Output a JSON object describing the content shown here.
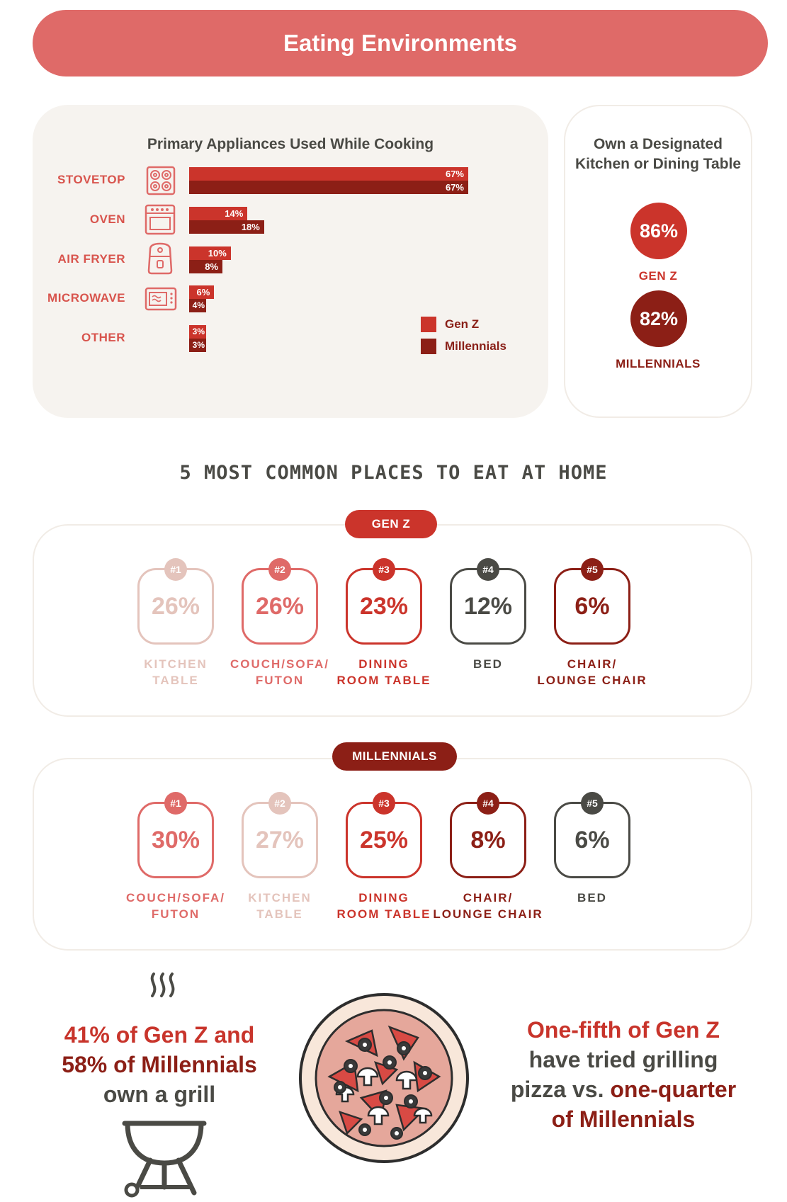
{
  "banner": {
    "title": "Eating Environments"
  },
  "appliances": {
    "title": "Primary Appliances Used While Cooking",
    "legend": {
      "genz": "Gen Z",
      "millennials": "Millennials"
    }
  },
  "colors": {
    "genz": "#cb342b",
    "millennials": "#8c1f16",
    "accent": "#df6a68",
    "dark": "#4a4a45"
  },
  "chart_data": {
    "type": "bar",
    "orientation": "horizontal",
    "title": "Primary Appliances Used While Cooking",
    "categories": [
      "STOVETOP",
      "OVEN",
      "AIR FRYER",
      "MICROWAVE",
      "OTHER"
    ],
    "icons": [
      "stovetop-icon",
      "oven-icon",
      "air-fryer-icon",
      "microwave-icon",
      ""
    ],
    "series": [
      {
        "name": "Gen Z",
        "values": [
          67,
          14,
          10,
          6,
          3
        ],
        "labels": [
          "67%",
          "14%",
          "10%",
          "6%",
          "3%"
        ]
      },
      {
        "name": "Millennials",
        "values": [
          67,
          18,
          8,
          4,
          3
        ],
        "labels": [
          "67%",
          "18%",
          "8%",
          "4%",
          "3%"
        ]
      }
    ],
    "xlim": [
      0,
      70
    ],
    "grid": false,
    "legend_position": "bottom-right"
  },
  "own_table": {
    "title": "Own a Designated Kitchen or Dining Table",
    "genz_value": "86%",
    "genz_label": "GEN Z",
    "millennials_value": "82%",
    "millennials_label": "MILLENNIALS"
  },
  "places": {
    "title": "5 MOST COMMON PLACES TO EAT AT HOME",
    "genz": {
      "label": "GEN Z",
      "items": [
        {
          "rank": "#1",
          "value": "26%",
          "label": "KITCHEN\nTABLE",
          "color": "#e4c4bc"
        },
        {
          "rank": "#2",
          "value": "26%",
          "label": "COUCH/SOFA/\nFUTON",
          "color": "#df6a68"
        },
        {
          "rank": "#3",
          "value": "23%",
          "label": "DINING\nROOM TABLE",
          "color": "#cb342b"
        },
        {
          "rank": "#4",
          "value": "12%",
          "label": "BED",
          "color": "#4a4a45"
        },
        {
          "rank": "#5",
          "value": "6%",
          "label": "CHAIR/\nLOUNGE CHAIR",
          "color": "#8c1f16"
        }
      ]
    },
    "millennials": {
      "label": "MILLENNIALS",
      "items": [
        {
          "rank": "#1",
          "value": "30%",
          "label": "COUCH/SOFA/\nFUTON",
          "color": "#df6a68"
        },
        {
          "rank": "#2",
          "value": "27%",
          "label": "KITCHEN\nTABLE",
          "color": "#e4c4bc"
        },
        {
          "rank": "#3",
          "value": "25%",
          "label": "DINING\nROOM TABLE",
          "color": "#cb342b"
        },
        {
          "rank": "#4",
          "value": "8%",
          "label": "CHAIR/\nLOUNGE CHAIR",
          "color": "#8c1f16"
        },
        {
          "rank": "#5",
          "value": "6%",
          "label": "BED",
          "color": "#4a4a45"
        }
      ]
    }
  },
  "grill": {
    "line1": "41% of Gen Z and",
    "line2": "58% of Millennials",
    "line3": "own a grill"
  },
  "pizza": {
    "line1": "One-fifth of Gen Z",
    "line2": "have tried grilling",
    "line3a": "pizza vs. ",
    "line3b": "one-quarter",
    "line4": "of Millennials"
  }
}
